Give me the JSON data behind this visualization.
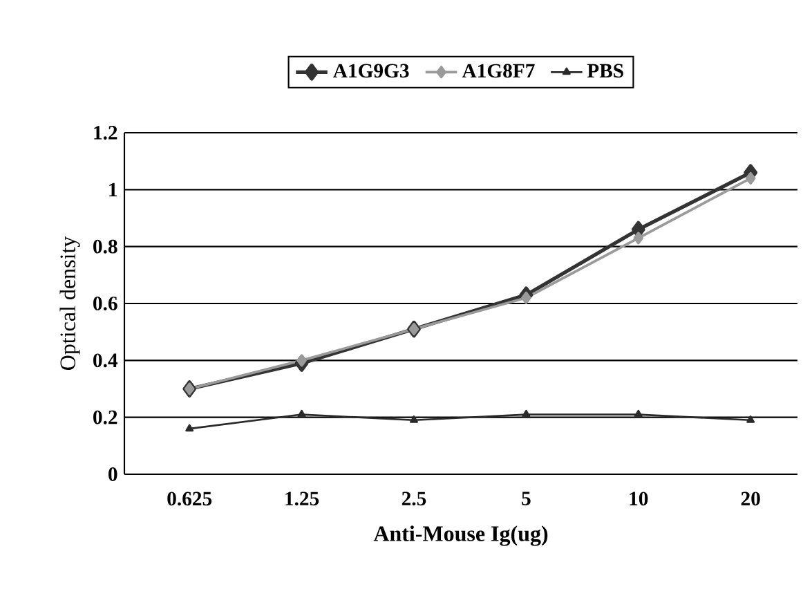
{
  "chart_data": {
    "type": "line",
    "xlabel": "Anti-Mouse Ig(ug)",
    "ylabel": "Optical density",
    "categories": [
      "0.625",
      "1.25",
      "2.5",
      "5",
      "10",
      "20"
    ],
    "series": [
      {
        "name": "A1G9G3",
        "color": "#333333",
        "marker": "diamond",
        "values": [
          0.3,
          0.39,
          0.51,
          0.63,
          0.86,
          1.06
        ]
      },
      {
        "name": "A1G8F7",
        "color": "#9a9a9a",
        "marker": "diamond",
        "values": [
          0.3,
          0.4,
          0.51,
          0.62,
          0.83,
          1.04
        ]
      },
      {
        "name": "PBS",
        "color": "#2a2a2a",
        "marker": "triangle",
        "values": [
          0.16,
          0.21,
          0.19,
          0.21,
          0.21,
          0.19
        ]
      }
    ],
    "ylim": [
      0,
      1.2
    ],
    "yticks": [
      0,
      0.2,
      0.4,
      0.6,
      0.8,
      1,
      1.2
    ],
    "grid": "y",
    "legend": "top"
  }
}
